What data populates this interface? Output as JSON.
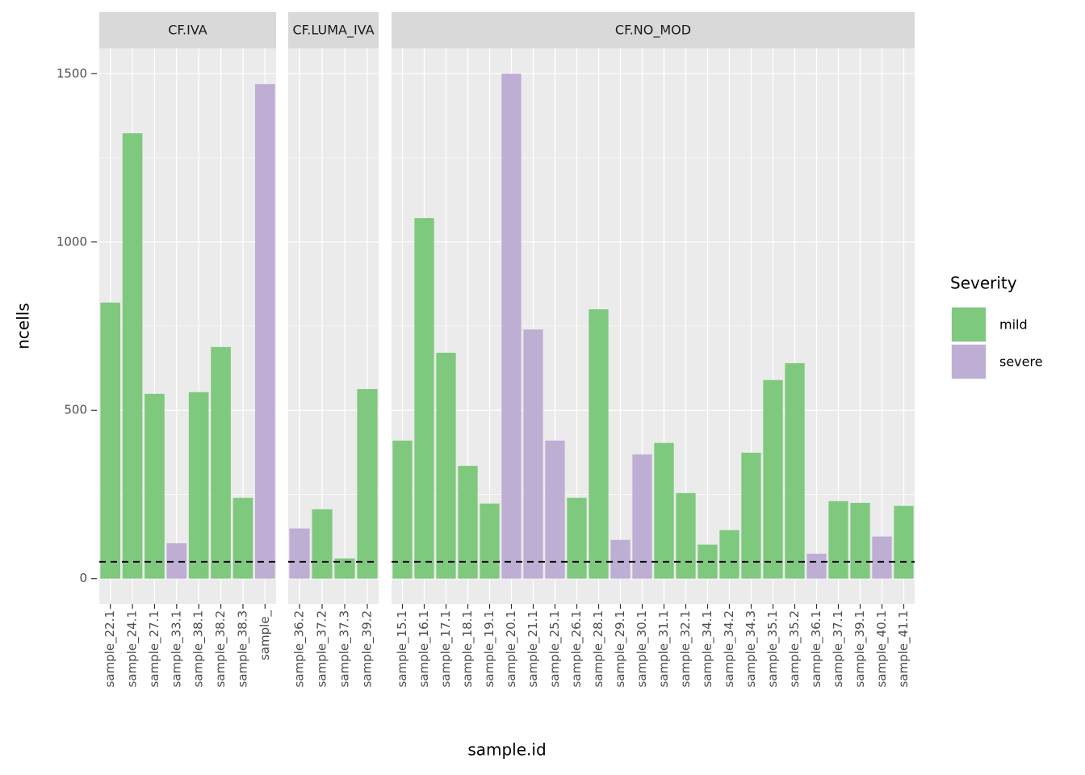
{
  "chart_data": {
    "type": "bar",
    "xlabel": "sample.id",
    "ylabel": "ncells",
    "legend_title": "Severity",
    "ylim": [
      -75,
      1575
    ],
    "yticks": [
      0,
      500,
      1000,
      1500
    ],
    "yminor": [
      250,
      750,
      1250
    ],
    "grid": true,
    "hline": 50,
    "facets": [
      {
        "title": "CF.IVA",
        "categories": [
          "sample_22.1",
          "sample_24.1",
          "sample_27.1",
          "sample_33.1",
          "sample_38.1",
          "sample_38.2",
          "sample_38.3",
          "sample_"
        ],
        "series": [
          {
            "name": "mild",
            "color": "#7fc97f",
            "values": [
              820,
              1323,
              549,
              null,
              554,
              688,
              240,
              null
            ]
          },
          {
            "name": "severe",
            "color": "#beaed4",
            "values": [
              null,
              null,
              null,
              105,
              null,
              null,
              null,
              1469
            ]
          }
        ]
      },
      {
        "title": "CF.LUMA_IVA",
        "categories": [
          "sample_36.2",
          "sample_37.2",
          "sample_37.3",
          "sample_39.2"
        ],
        "series": [
          {
            "name": "mild",
            "color": "#7fc97f",
            "values": [
              null,
              206,
              60,
              563
            ]
          },
          {
            "name": "severe",
            "color": "#beaed4",
            "values": [
              149,
              null,
              null,
              null
            ]
          }
        ]
      },
      {
        "title": "CF.NO_MOD",
        "categories": [
          "sample_15.1",
          "sample_16.1",
          "sample_17.1",
          "sample_18.1",
          "sample_19.1",
          "sample_20.1",
          "sample_21.1",
          "sample_25.1",
          "sample_26.1",
          "sample_28.1",
          "sample_29.1",
          "sample_30.1",
          "sample_31.1",
          "sample_32.1",
          "sample_34.1",
          "sample_34.2",
          "sample_34.3",
          "sample_35.1",
          "sample_35.2",
          "sample_36.1",
          "sample_37.1",
          "sample_39.1",
          "sample_40.1",
          "sample_41.1"
        ],
        "series": [
          {
            "name": "mild",
            "color": "#7fc97f",
            "values": [
              410,
              1071,
              671,
              335,
              223,
              null,
              null,
              null,
              240,
              800,
              null,
              null,
              403,
              254,
              101,
              144,
              374,
              590,
              640,
              null,
              230,
              225,
              null,
              216
            ]
          },
          {
            "name": "severe",
            "color": "#beaed4",
            "values": [
              null,
              null,
              null,
              null,
              null,
              1500,
              740,
              410,
              null,
              null,
              115,
              369,
              null,
              null,
              null,
              null,
              null,
              null,
              null,
              74,
              null,
              null,
              125,
              null
            ]
          }
        ]
      }
    ]
  }
}
